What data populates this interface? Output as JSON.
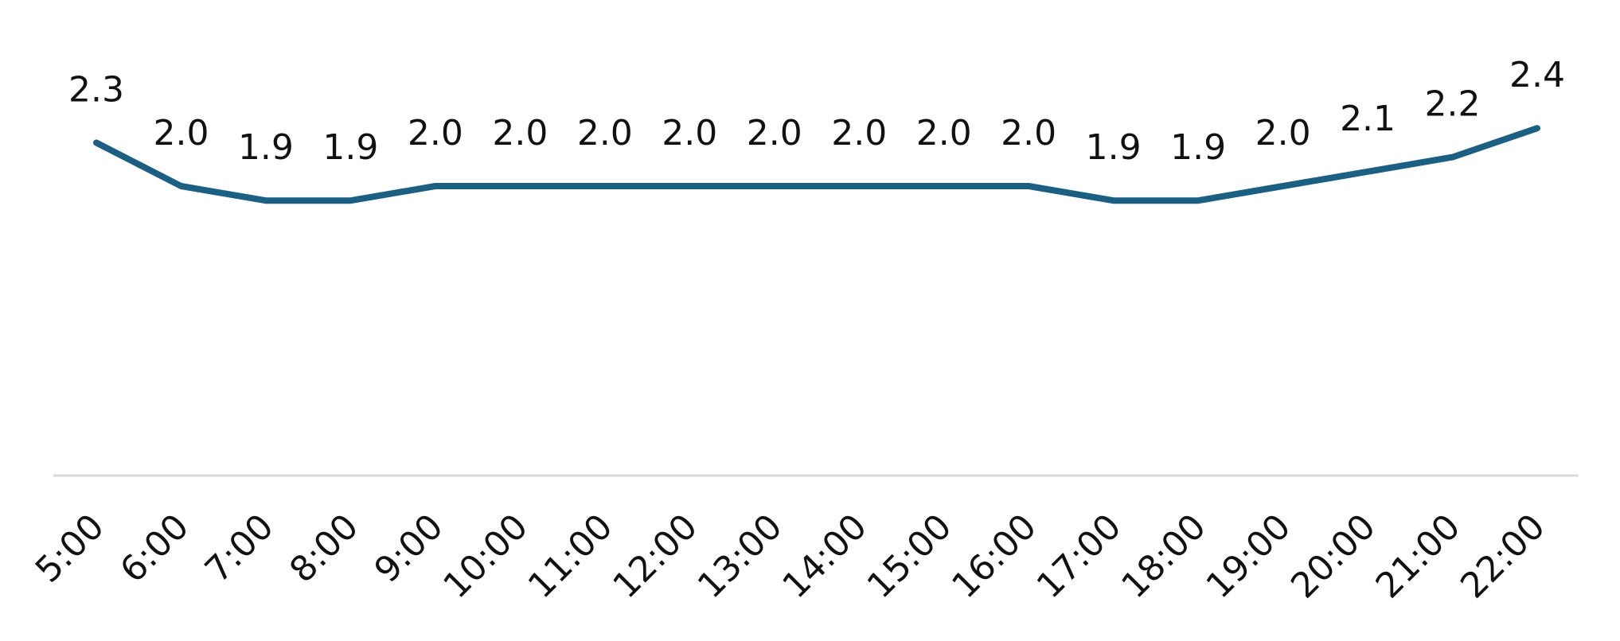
{
  "chart_data": {
    "type": "line",
    "categories": [
      "5:00",
      "6:00",
      "7:00",
      "8:00",
      "9:00",
      "10:00",
      "11:00",
      "12:00",
      "13:00",
      "14:00",
      "15:00",
      "16:00",
      "17:00",
      "18:00",
      "19:00",
      "20:00",
      "21:00",
      "22:00"
    ],
    "values": [
      2.3,
      2.0,
      1.9,
      1.9,
      2.0,
      2.0,
      2.0,
      2.0,
      2.0,
      2.0,
      2.0,
      2.0,
      1.9,
      1.9,
      2.0,
      2.1,
      2.2,
      2.4
    ],
    "value_labels": [
      "2.3",
      "2.0",
      "1.9",
      "1.9",
      "2.0",
      "2.0",
      "2.0",
      "2.0",
      "2.0",
      "2.0",
      "2.0",
      "2.0",
      "1.9",
      "1.9",
      "2.0",
      "2.1",
      "2.2",
      "2.4"
    ],
    "color": "#1b6083",
    "ylim": [
      0,
      3
    ]
  }
}
